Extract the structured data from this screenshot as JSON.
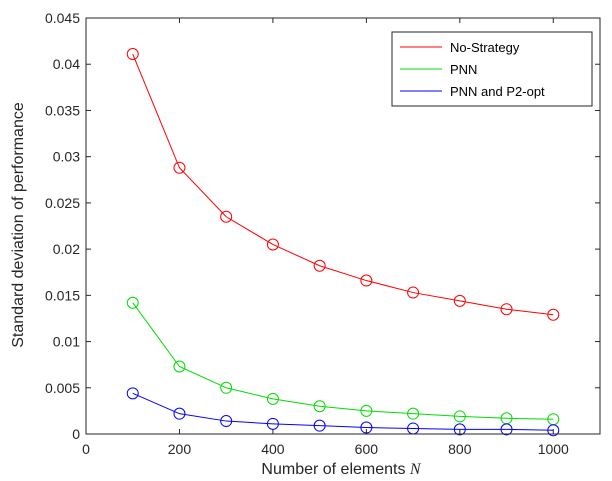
{
  "chart_data": {
    "type": "line",
    "x": [
      100,
      200,
      300,
      400,
      500,
      600,
      700,
      800,
      900,
      1000
    ],
    "series": [
      {
        "name": "No-Strategy",
        "color": "#ff0000",
        "values": [
          0.0411,
          0.0288,
          0.0235,
          0.0205,
          0.0182,
          0.0166,
          0.0153,
          0.0144,
          0.0135,
          0.0129
        ]
      },
      {
        "name": "PNN",
        "color": "#00dd00",
        "values": [
          0.0142,
          0.0073,
          0.005,
          0.0038,
          0.003,
          0.0025,
          0.0022,
          0.0019,
          0.0017,
          0.0016
        ]
      },
      {
        "name": "PNN and P2-opt",
        "color": "#0000ff",
        "values": [
          0.0044,
          0.0022,
          0.0014,
          0.0011,
          0.0009,
          0.0007,
          0.0006,
          0.0005,
          0.0005,
          0.0004
        ]
      }
    ],
    "xlabel": "Number of elements",
    "xlabel_var": "N",
    "ylabel": "Standard deviation of performance",
    "xlim": [
      0,
      1100
    ],
    "ylim": [
      0,
      0.045
    ],
    "xticks": [
      0,
      200,
      400,
      600,
      800,
      1000
    ],
    "xtick_labels": [
      "0",
      "200",
      "400",
      "600",
      "800",
      "1000"
    ],
    "yticks": [
      0,
      0.005,
      0.01,
      0.015,
      0.02,
      0.025,
      0.03,
      0.035,
      0.04,
      0.045
    ],
    "ytick_labels": [
      "0",
      "0.005",
      "0.01",
      "0.015",
      "0.02",
      "0.025",
      "0.03",
      "0.035",
      "0.04",
      "0.045"
    ],
    "marker": "circle",
    "grid": false,
    "legend_position": "top-right"
  }
}
